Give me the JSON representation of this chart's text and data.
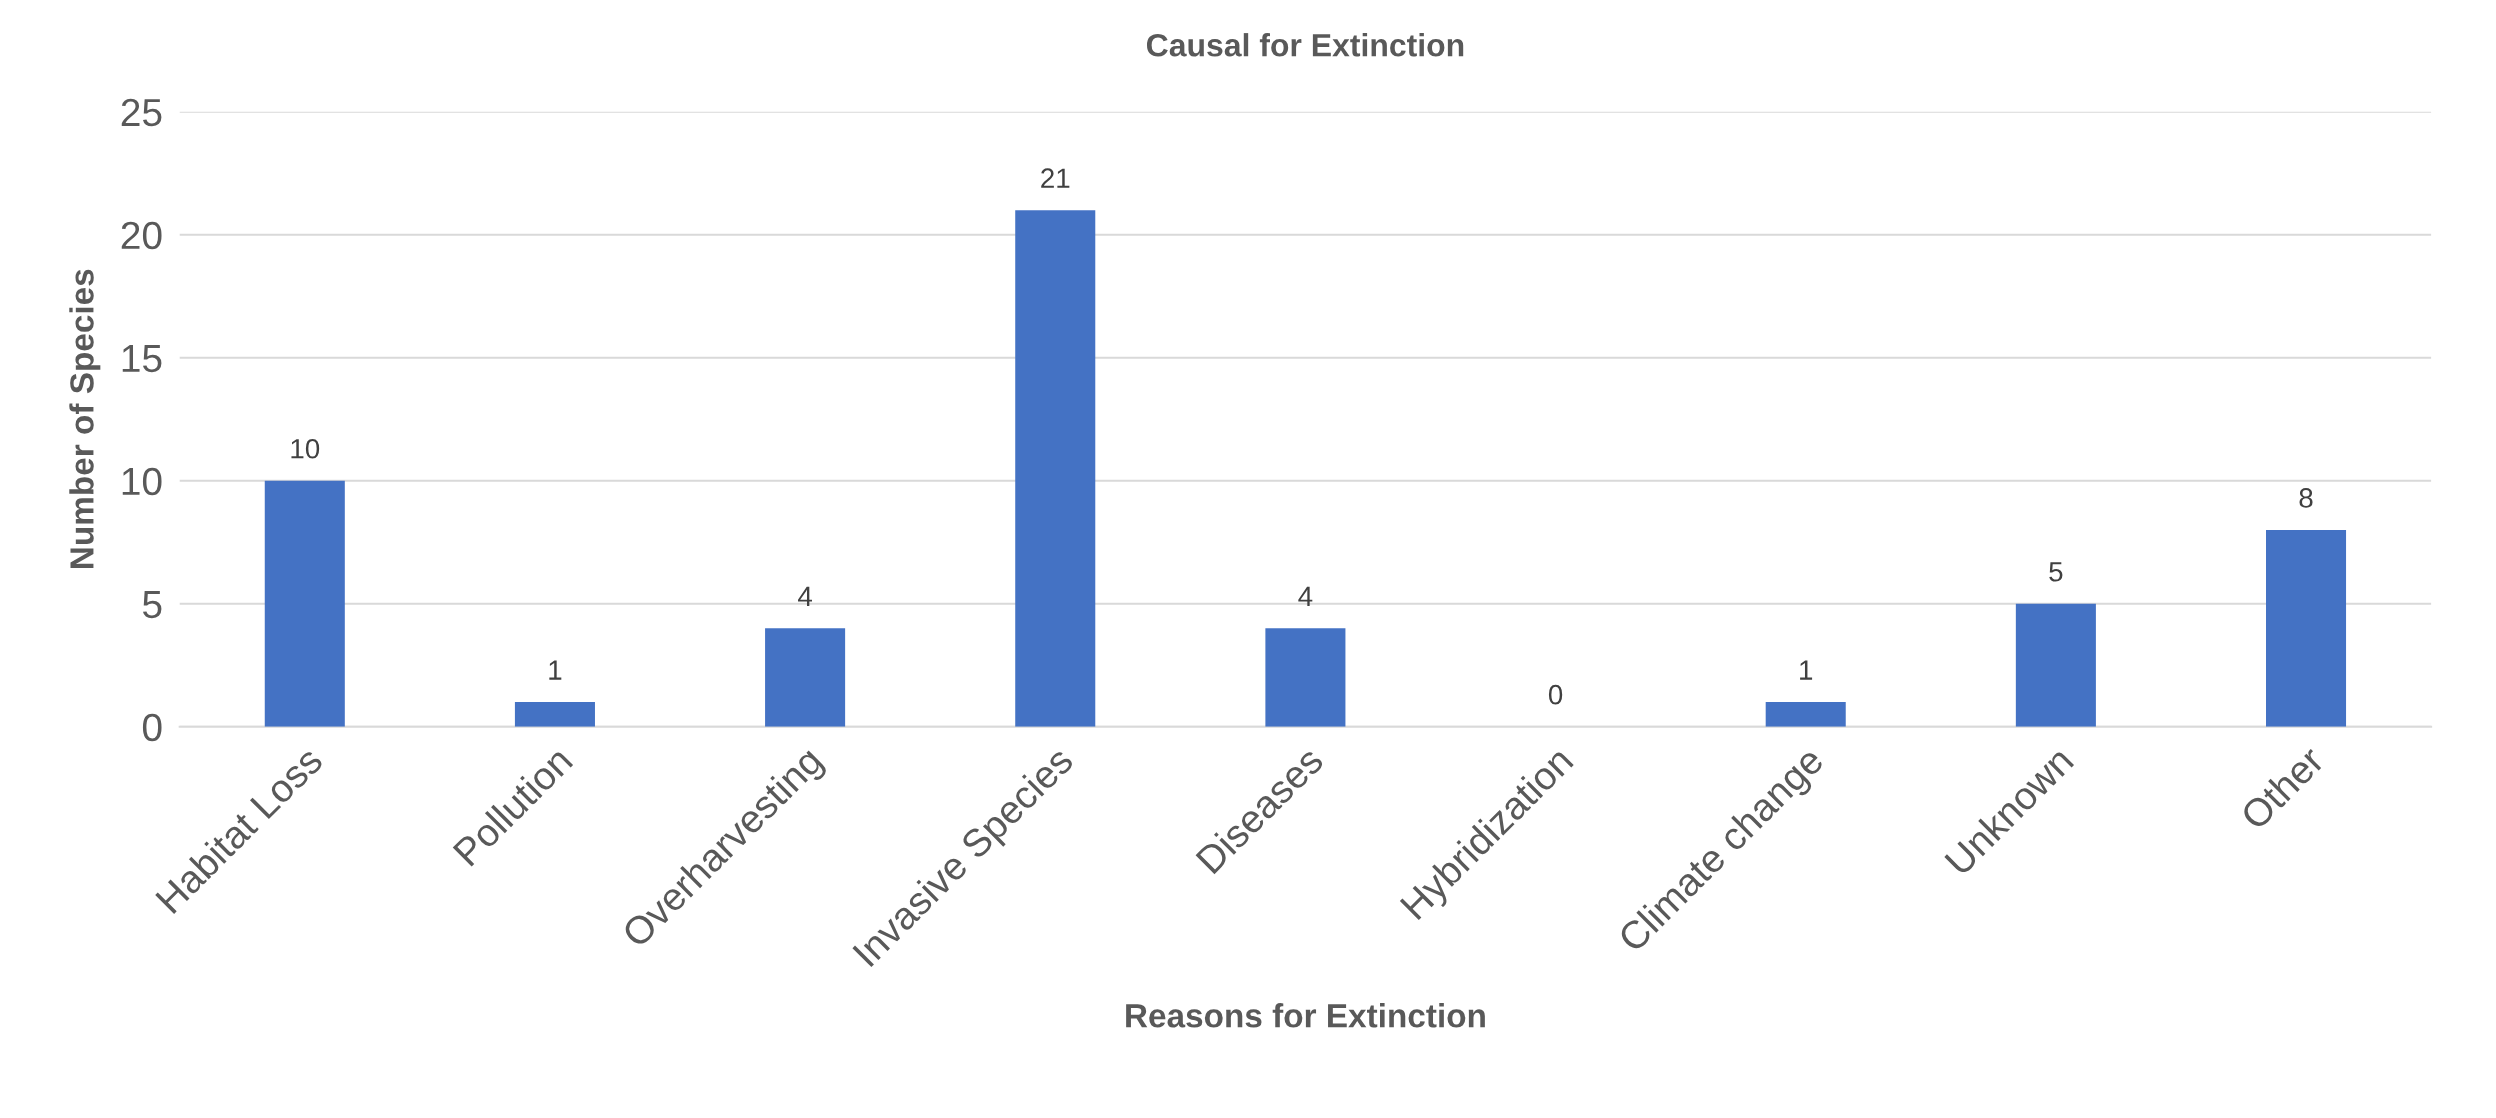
{
  "chart_data": {
    "type": "bar",
    "title": "Causal for Extinction",
    "xlabel": "Reasons for Extinction",
    "ylabel": "Number of Species",
    "categories": [
      "Habitat Loss",
      "Pollution",
      "Overharvesting",
      "Invasive Species",
      "Diseases",
      "Hybridization",
      "Climate change",
      "Unknown",
      "Other"
    ],
    "values": [
      10,
      1,
      4,
      21,
      4,
      0,
      1,
      5,
      8
    ],
    "color": "#4472c4",
    "ylim": [
      0,
      25
    ],
    "yticks": [
      0,
      5,
      10,
      15,
      20,
      25
    ],
    "grid": "y",
    "data_labels": true
  }
}
